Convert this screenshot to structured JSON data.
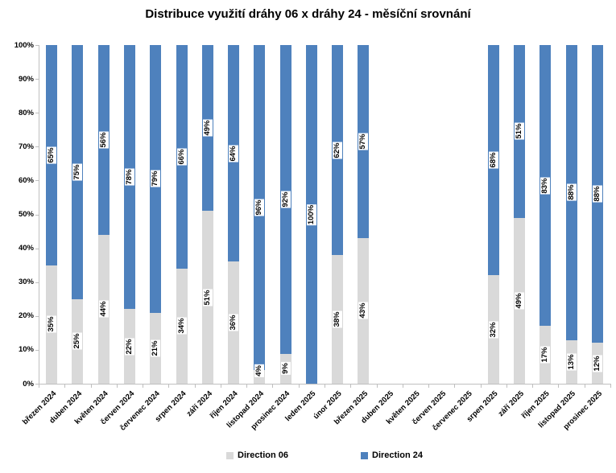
{
  "chart_data": {
    "type": "bar",
    "stacked": true,
    "title": "Distribuce využití dráhy 06 x dráhy 24 - měsíční srovnání",
    "categories": [
      "březen 2024",
      "duben 2024",
      "květen 2024",
      "červen 2024",
      "červenec 2024",
      "srpen 2024",
      "září 2024",
      "říjen 2024",
      "listopad 2024",
      "prosinec 2024",
      "leden 2025",
      "únor 2025",
      "březen 2025",
      "duben 2025",
      "květen 2025",
      "červen 2025",
      "červenec 2025",
      "srpen 2025",
      "září 2025",
      "říjen 2025",
      "listopad 2025",
      "prosinec 2025"
    ],
    "series": [
      {
        "name": "Direction 06",
        "color": "#d9d9d9",
        "values": [
          35,
          25,
          44,
          22,
          21,
          34,
          51,
          36,
          4,
          9,
          null,
          38,
          43,
          null,
          null,
          null,
          null,
          32,
          49,
          17,
          13,
          12
        ]
      },
      {
        "name": "Direction 24",
        "color": "#4e81bd",
        "values": [
          65,
          75,
          56,
          78,
          79,
          66,
          49,
          64,
          96,
          92,
          100,
          62,
          57,
          null,
          null,
          null,
          null,
          68,
          51,
          83,
          88,
          88
        ]
      }
    ],
    "value_suffix": "%",
    "y_ticks": [
      "0%",
      "10%",
      "20%",
      "30%",
      "40%",
      "50%",
      "60%",
      "70%",
      "80%",
      "90%",
      "100%"
    ],
    "ylim": [
      0,
      100
    ],
    "grid": false,
    "legend_position": "bottom",
    "axis_color": "#bfbfbf",
    "label_color": "#000000"
  }
}
